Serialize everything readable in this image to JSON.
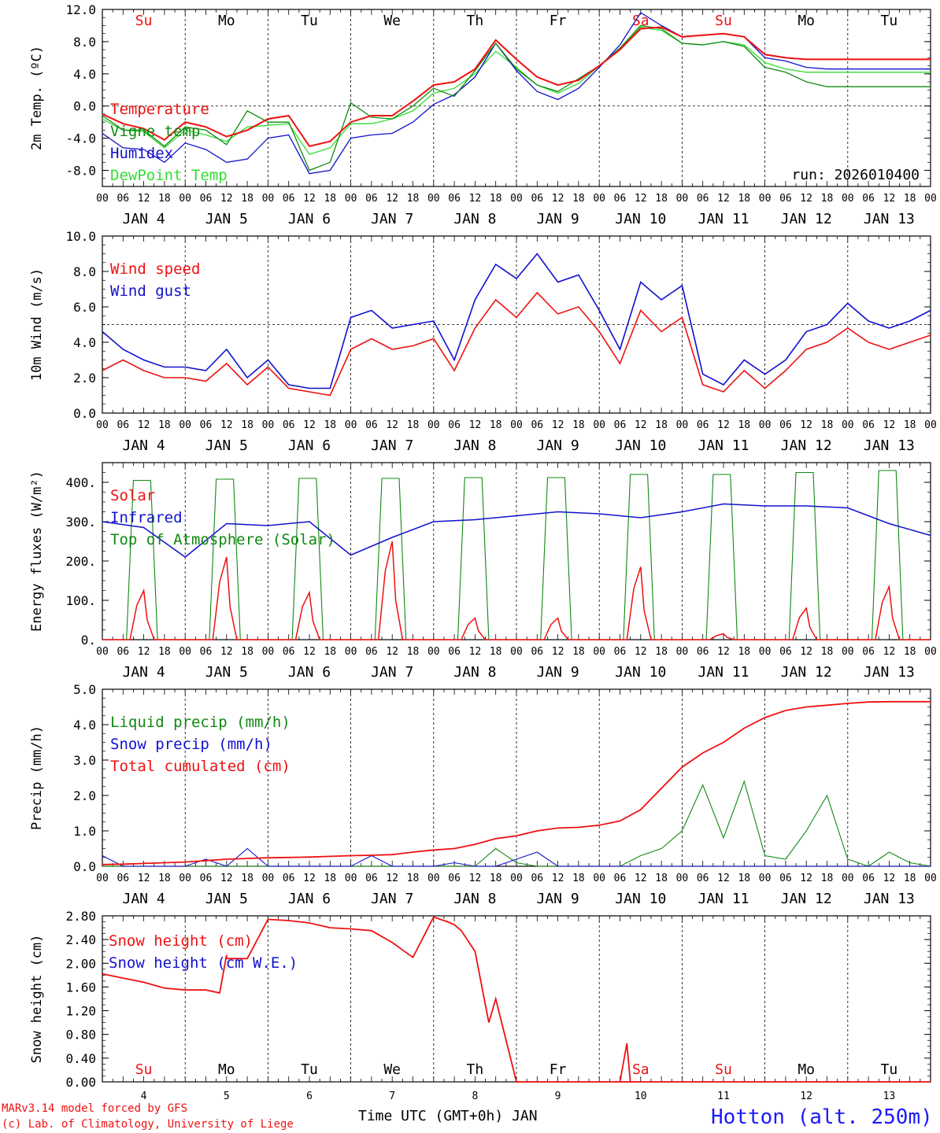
{
  "colors": {
    "red": "#ee1111",
    "darkgreen": "#118811",
    "blue": "#1111cc",
    "lightgreen": "#33dd33",
    "black": "#000000",
    "footer_blue": "#1a1aff"
  },
  "time_axis": {
    "hour_ticks": [
      "00",
      "06",
      "12",
      "18"
    ],
    "date_labels": [
      "JAN  4",
      "JAN  5",
      "JAN  6",
      "JAN  7",
      "JAN  8",
      "JAN  9",
      "JAN 10",
      "JAN 11",
      "JAN 12",
      "JAN 13"
    ],
    "day_names": [
      "Su",
      "Mo",
      "Tu",
      "We",
      "Th",
      "Fr",
      "Sa",
      "Su",
      "Mo",
      "Tu"
    ],
    "day_numbers": [
      "4",
      "5",
      "6",
      "7",
      "8",
      "9",
      "10",
      "11",
      "12",
      "13"
    ],
    "weekend_days": [
      0,
      6,
      7
    ]
  },
  "chart_data": [
    {
      "type": "line",
      "ylabel": "2m Temp. (ºC)",
      "ylim": [
        -10,
        12
      ],
      "yticks": [
        "-8.0",
        "-4.0",
        "0.0",
        "4.0",
        "8.0",
        "12.0"
      ],
      "tick_values": [
        -8,
        -4,
        0,
        4,
        8,
        12
      ],
      "dashed_zero": 0,
      "run": "run: 2026010400",
      "x": [
        0,
        6,
        12,
        18,
        24,
        30,
        36,
        42,
        48,
        54,
        60,
        66,
        72,
        78,
        84,
        90,
        96,
        102,
        108,
        114,
        120,
        126,
        132,
        138,
        144,
        150,
        156,
        162,
        168,
        174,
        180,
        186,
        192,
        198,
        204,
        210,
        216,
        222,
        228,
        234,
        240
      ],
      "series": [
        {
          "name": "Temperature",
          "color": "red",
          "values": [
            -1.0,
            -2.2,
            -2.8,
            -4.2,
            -2.0,
            -2.6,
            -3.8,
            -3.0,
            -1.6,
            -1.2,
            -5.0,
            -4.4,
            -2.0,
            -1.2,
            -1.2,
            0.6,
            2.6,
            3.0,
            4.6,
            8.2,
            5.8,
            3.6,
            2.6,
            3.2,
            5.0,
            7.0,
            9.6,
            9.8,
            8.6,
            8.8,
            9.0,
            8.6,
            6.4,
            6.0,
            5.8,
            5.8,
            5.8,
            5.8,
            5.8,
            5.8,
            5.8
          ]
        },
        {
          "name": "Vigne temp",
          "color": "darkgreen",
          "values": [
            -1.2,
            -3.0,
            -3.0,
            -5.0,
            -2.6,
            -3.0,
            -4.8,
            -0.6,
            -2.0,
            -2.0,
            -8.0,
            -7.0,
            0.4,
            -1.4,
            -1.6,
            0.0,
            2.2,
            1.2,
            4.4,
            7.8,
            4.6,
            2.6,
            1.8,
            3.4,
            5.0,
            7.2,
            10.0,
            9.6,
            7.8,
            7.6,
            8.0,
            7.4,
            4.8,
            4.2,
            3.0,
            2.4,
            2.4,
            2.4,
            2.4,
            2.4,
            2.4
          ]
        },
        {
          "name": "Humidex",
          "color": "blue",
          "values": [
            -3.4,
            -5.2,
            -5.4,
            -7.0,
            -4.6,
            -5.4,
            -7.0,
            -6.6,
            -4.0,
            -3.6,
            -8.4,
            -8.0,
            -4.0,
            -3.6,
            -3.4,
            -2.0,
            0.2,
            1.4,
            3.6,
            7.8,
            4.4,
            1.8,
            0.8,
            2.2,
            4.8,
            7.6,
            11.6,
            10.0,
            8.6,
            8.8,
            9.0,
            8.6,
            6.0,
            5.6,
            4.8,
            4.6,
            4.6,
            4.6,
            4.6,
            4.6,
            4.6
          ]
        },
        {
          "name": "DewPoint Temp",
          "color": "lightgreen",
          "values": [
            -1.6,
            -3.0,
            -3.2,
            -5.2,
            -3.0,
            -3.6,
            -4.4,
            -2.6,
            -2.4,
            -2.2,
            -6.0,
            -5.2,
            -2.2,
            -2.2,
            -1.6,
            -0.6,
            1.6,
            2.2,
            4.0,
            6.8,
            4.8,
            2.6,
            1.6,
            2.8,
            5.0,
            7.2,
            9.8,
            9.4,
            7.8,
            7.6,
            8.0,
            7.6,
            5.4,
            4.6,
            4.2,
            4.2,
            4.2,
            4.2,
            4.2,
            4.2,
            4.2
          ]
        }
      ]
    },
    {
      "type": "line",
      "ylabel": "10m Wind (m/s)",
      "ylim": [
        0,
        10
      ],
      "yticks": [
        "0.0",
        "2.0",
        "4.0",
        "6.0",
        "8.0",
        "10.0"
      ],
      "tick_values": [
        0,
        2,
        4,
        6,
        8,
        10
      ],
      "dashed_zero": 5,
      "x": [
        0,
        6,
        12,
        18,
        24,
        30,
        36,
        42,
        48,
        54,
        60,
        66,
        72,
        78,
        84,
        90,
        96,
        102,
        108,
        114,
        120,
        126,
        132,
        138,
        144,
        150,
        156,
        162,
        168,
        174,
        180,
        186,
        192,
        198,
        204,
        210,
        216,
        222,
        228,
        234,
        240
      ],
      "series": [
        {
          "name": "Wind speed",
          "color": "red",
          "values": [
            2.4,
            3.0,
            2.4,
            2.0,
            2.0,
            1.8,
            2.8,
            1.6,
            2.6,
            1.4,
            1.2,
            1.0,
            3.6,
            4.2,
            3.6,
            3.8,
            4.2,
            2.4,
            4.8,
            6.4,
            5.4,
            6.8,
            5.6,
            6.0,
            4.6,
            2.8,
            5.8,
            4.6,
            5.4,
            1.6,
            1.2,
            2.4,
            1.4,
            2.4,
            3.6,
            4.0,
            4.8,
            4.0,
            3.6,
            4.0,
            4.4
          ]
        },
        {
          "name": "Wind gust",
          "color": "blue",
          "values": [
            4.6,
            3.6,
            3.0,
            2.6,
            2.6,
            2.4,
            3.6,
            2.0,
            3.0,
            1.6,
            1.4,
            1.4,
            5.4,
            5.8,
            4.8,
            5.0,
            5.2,
            3.0,
            6.4,
            8.4,
            7.6,
            9.0,
            7.4,
            7.8,
            5.8,
            3.6,
            7.4,
            6.4,
            7.2,
            2.2,
            1.6,
            3.0,
            2.2,
            3.0,
            4.6,
            5.0,
            6.2,
            5.2,
            4.8,
            5.2,
            5.8
          ]
        }
      ]
    },
    {
      "type": "line",
      "ylabel": "Energy fluxes (W/m²)",
      "ylim": [
        0,
        450
      ],
      "yticks": [
        "0.",
        "100.",
        "200.",
        "300.",
        "400."
      ],
      "tick_values": [
        0,
        100,
        200,
        300,
        400
      ],
      "solar_peaks": [
        125,
        210,
        120,
        250,
        55,
        55,
        185,
        15,
        80,
        135
      ],
      "toa_peaks": [
        405,
        408,
        410,
        410,
        412,
        412,
        420,
        420,
        425,
        430
      ],
      "infrared": [
        300,
        285,
        210,
        295,
        290,
        300,
        215,
        260,
        300,
        305,
        315,
        325,
        320,
        310,
        325,
        345,
        340,
        340,
        335,
        295,
        265
      ],
      "series": [
        {
          "name": "Solar",
          "color": "red"
        },
        {
          "name": "Infrared",
          "color": "blue"
        },
        {
          "name": "Top of Atmosphere (Solar)",
          "color": "darkgreen"
        }
      ]
    },
    {
      "type": "line",
      "ylabel": "Precip (mm/h)",
      "ylim": [
        0,
        5
      ],
      "yticks": [
        "0.0",
        "1.0",
        "2.0",
        "3.0",
        "4.0",
        "5.0"
      ],
      "tick_values": [
        0,
        1,
        2,
        3,
        4,
        5
      ],
      "x": [
        0,
        6,
        12,
        18,
        24,
        30,
        36,
        42,
        48,
        54,
        60,
        66,
        72,
        78,
        84,
        90,
        96,
        102,
        108,
        114,
        120,
        126,
        132,
        138,
        144,
        150,
        156,
        162,
        168,
        174,
        180,
        186,
        192,
        198,
        204,
        210,
        216,
        222,
        228,
        234,
        240
      ],
      "series": [
        {
          "name": "Liquid precip (mm/h)",
          "color": "darkgreen",
          "values": [
            0,
            0,
            0,
            0,
            0,
            0,
            0,
            0,
            0,
            0,
            0,
            0,
            0,
            0,
            0,
            0,
            0,
            0,
            0,
            0.5,
            0.1,
            0,
            0,
            0,
            0,
            0,
            0.3,
            0.5,
            1.0,
            2.3,
            0.8,
            2.4,
            0.3,
            0.2,
            1.0,
            2.0,
            0.2,
            0,
            0.4,
            0.1,
            0
          ]
        },
        {
          "name": "Snow precip (mm/h)",
          "color": "blue",
          "values": [
            0.3,
            0,
            0,
            0,
            0,
            0.2,
            0,
            0.5,
            0,
            0,
            0,
            0,
            0,
            0.3,
            0,
            0,
            0,
            0.1,
            0,
            0,
            0.2,
            0.4,
            0,
            0,
            0,
            0,
            0,
            0,
            0,
            0,
            0,
            0,
            0,
            0,
            0,
            0,
            0,
            0,
            0,
            0,
            0
          ]
        },
        {
          "name": "Total cumulated (cm)",
          "color": "red",
          "values": [
            0.05,
            0.06,
            0.08,
            0.1,
            0.12,
            0.16,
            0.2,
            0.22,
            0.24,
            0.25,
            0.26,
            0.28,
            0.3,
            0.31,
            0.33,
            0.4,
            0.46,
            0.5,
            0.62,
            0.78,
            0.86,
            1.0,
            1.08,
            1.1,
            1.16,
            1.28,
            1.6,
            2.2,
            2.8,
            3.2,
            3.5,
            3.9,
            4.2,
            4.4,
            4.5,
            4.55,
            4.6,
            4.64,
            4.65,
            4.65,
            4.65
          ]
        }
      ]
    },
    {
      "type": "line",
      "ylabel": "Snow height (cm)",
      "ylim": [
        0,
        2.8
      ],
      "yticks": [
        "0.00",
        "0.40",
        "0.80",
        "1.20",
        "1.60",
        "2.00",
        "2.40",
        "2.80"
      ],
      "tick_values": [
        0,
        0.4,
        0.8,
        1.2,
        1.6,
        2.0,
        2.4,
        2.8
      ],
      "x": [
        0,
        6,
        12,
        18,
        24,
        30,
        34,
        36,
        36,
        38,
        42,
        48,
        54,
        60,
        66,
        72,
        78,
        84,
        90,
        96,
        100,
        102,
        104,
        108,
        112,
        114,
        120,
        126,
        144,
        150,
        150,
        168,
        192,
        216,
        240
      ],
      "series": [
        {
          "name": "Snow height (cm)",
          "color": "red",
          "values": [
            1.82,
            1.75,
            1.68,
            1.58,
            1.55,
            1.55,
            1.5,
            2.14,
            2.08,
            2.08,
            2.08,
            2.74,
            2.72,
            2.68,
            2.6,
            2.58,
            2.55,
            2.35,
            2.1,
            2.78,
            2.7,
            2.65,
            2.55,
            2.2,
            1.0,
            1.4,
            0.0,
            0.0,
            0.0,
            0.0,
            0.0,
            0.0,
            0.0,
            0.0,
            0.0
          ]
        },
        {
          "name": "Snow height (cm W.E.)",
          "color": "blue"
        }
      ],
      "spike": {
        "x": 152,
        "value": 0.65
      }
    }
  ],
  "footer": {
    "xlabel": "Time UTC (GMT+0h) JAN",
    "credit_line1": "MARv3.14 model forced by GFS",
    "credit_line2": "(c) Lab. of Climatology, University of Liege",
    "station": "Hotton (alt. 250m)"
  }
}
